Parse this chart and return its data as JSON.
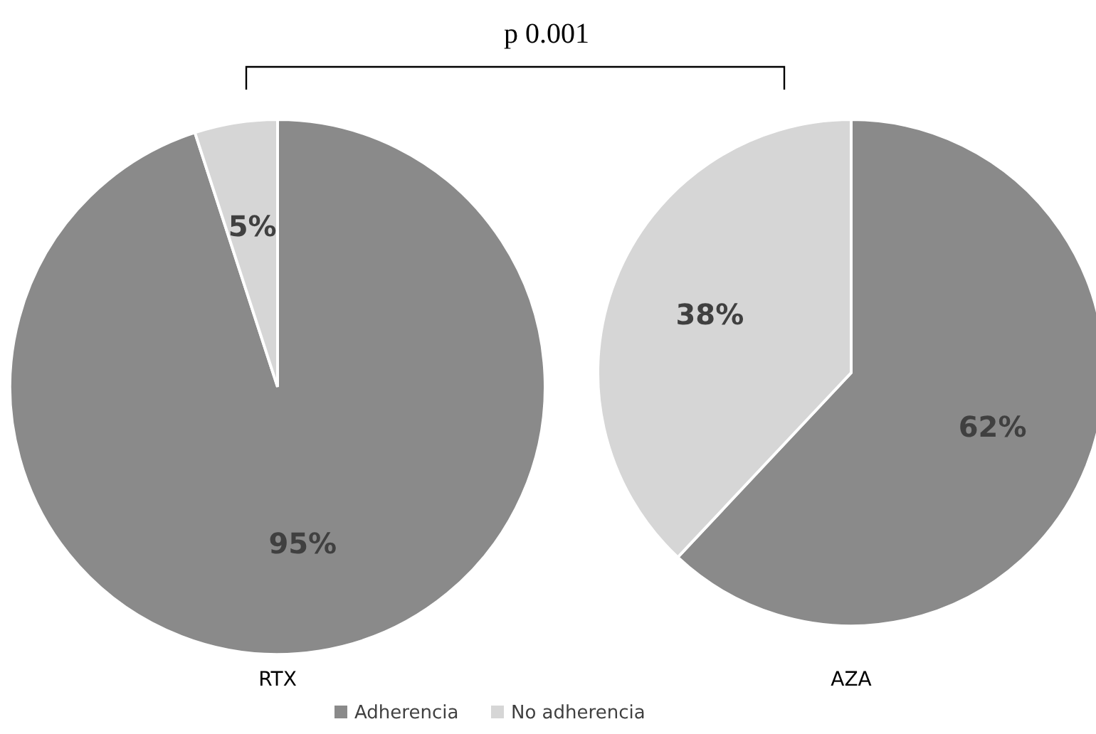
{
  "chart_data": [
    {
      "type": "pie",
      "xlabel": "RTX",
      "categories": [
        "Adherencia",
        "No adherencia"
      ],
      "values": [
        95,
        5
      ],
      "colors": [
        "#8a8a8a",
        "#d6d6d6"
      ],
      "value_labels": [
        "95%",
        "5%"
      ],
      "legend": "bottom",
      "annotations": [
        "p 0.001"
      ]
    },
    {
      "type": "pie",
      "xlabel": "AZA",
      "categories": [
        null,
        null
      ],
      "values": [
        62,
        38
      ],
      "colors": [
        "#8a8a8a",
        "#d6d6d6"
      ],
      "value_labels": [
        "62%",
        "38%"
      ]
    }
  ]
}
